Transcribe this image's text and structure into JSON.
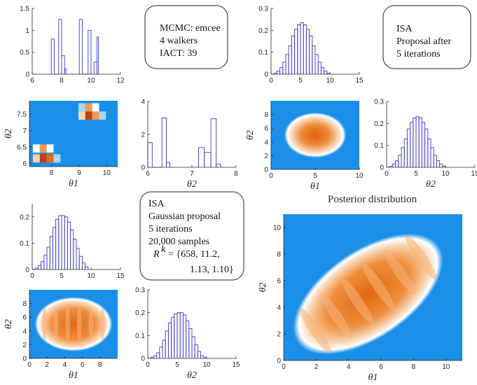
{
  "colors": {
    "background": "#1a8fe8",
    "accent": "#e05a08",
    "line": "#3b3bc8",
    "text": "#262626"
  },
  "text_boxes": [
    {
      "id": "tb1",
      "lines": [
        "MCMC: emcee",
        "4 walkers",
        "IACT: 39"
      ]
    },
    {
      "id": "tb2",
      "lines": [
        "ISA",
        "Proposal after",
        "5 iterations"
      ]
    },
    {
      "id": "tb3",
      "lines": [
        "ISA",
        "Gaussian proposal",
        "5 iterations",
        "20,000 samples"
      ],
      "math": [
        "R",
        "k",
        "= {658, 11.2,",
        "1.13, 1.10}"
      ]
    }
  ],
  "section_title": "Posterior distribution",
  "chart_data": [
    {
      "id": "p1",
      "type": "histogram",
      "x_range": [
        6,
        12
      ],
      "y_range": [
        0,
        1.5
      ],
      "x_ticks": [
        "6",
        "8",
        "10",
        "12"
      ],
      "y_ticks": [
        "0",
        "0.5",
        "1",
        "1.5"
      ],
      "bins": [
        [
          7.3,
          7.5,
          0.8
        ],
        [
          7.5,
          7.8,
          0
        ],
        [
          7.8,
          8.0,
          1.25
        ],
        [
          8.0,
          8.2,
          0.42
        ],
        [
          8.2,
          8.3,
          0.12
        ],
        [
          9.2,
          9.4,
          1.25
        ],
        [
          9.4,
          9.8,
          0
        ],
        [
          9.8,
          10.0,
          1.0
        ],
        [
          10.2,
          10.4,
          0.28
        ],
        [
          10.4,
          10.5,
          0.85
        ]
      ]
    },
    {
      "id": "p2",
      "type": "histogram",
      "x_range": [
        0,
        15
      ],
      "y_range": [
        0,
        0.3
      ],
      "x_ticks": [
        "0",
        "5",
        "10",
        "15"
      ],
      "y_ticks": [
        "0",
        "0.1",
        "0.2",
        "0.3"
      ],
      "bins": [
        [
          0.5,
          1,
          0.005
        ],
        [
          1,
          1.5,
          0.015
        ],
        [
          1.5,
          2,
          0.03
        ],
        [
          2,
          2.5,
          0.055
        ],
        [
          2.5,
          3,
          0.09
        ],
        [
          3,
          3.5,
          0.13
        ],
        [
          3.5,
          4,
          0.175
        ],
        [
          4,
          4.5,
          0.205
        ],
        [
          4.5,
          5,
          0.225
        ],
        [
          5,
          5.5,
          0.235
        ],
        [
          5.5,
          6,
          0.225
        ],
        [
          6,
          6.5,
          0.205
        ],
        [
          6.5,
          7,
          0.175
        ],
        [
          7,
          7.5,
          0.13
        ],
        [
          7.5,
          8,
          0.09
        ],
        [
          8,
          8.5,
          0.055
        ],
        [
          8.5,
          9,
          0.03
        ],
        [
          9,
          9.5,
          0.015
        ],
        [
          9.5,
          10,
          0.005
        ]
      ]
    },
    {
      "id": "p3",
      "type": "heatmap",
      "xlabel": "θ1",
      "ylabel": "θ2",
      "x_range": [
        7.2,
        10.4
      ],
      "y_range": [
        5.9,
        7.9
      ],
      "x_ticks": [
        "8",
        "9",
        "10"
      ],
      "y_ticks": [
        "6",
        "6.5",
        "7",
        "7.5"
      ],
      "cells": [
        [
          7.7,
          6.15,
          1
        ],
        [
          7.95,
          6.15,
          0.85
        ],
        [
          7.45,
          6.15,
          0.4
        ],
        [
          7.7,
          6.45,
          0.6
        ],
        [
          7.45,
          6.45,
          0.25
        ],
        [
          7.95,
          6.45,
          0.2
        ],
        [
          8.2,
          6.15,
          0.15
        ],
        [
          9.35,
          7.45,
          1
        ],
        [
          9.6,
          7.45,
          0.7
        ],
        [
          9.1,
          7.45,
          0.4
        ],
        [
          9.35,
          7.7,
          0.55
        ],
        [
          9.6,
          7.7,
          0.2
        ],
        [
          9.1,
          7.7,
          0.15
        ],
        [
          9.85,
          7.45,
          0.15
        ]
      ]
    },
    {
      "id": "p4",
      "type": "histogram",
      "xlabel": "θ2",
      "x_range": [
        6,
        8
      ],
      "y_range": [
        0,
        4
      ],
      "x_ticks": [
        "6",
        "7",
        "8"
      ],
      "y_ticks": [
        "0",
        "2",
        "4"
      ],
      "bins": [
        [
          6.0,
          6.1,
          1.5
        ],
        [
          6.1,
          6.32,
          0
        ],
        [
          6.32,
          6.42,
          3.0
        ],
        [
          6.42,
          6.5,
          0.3
        ],
        [
          7.15,
          7.28,
          1.2
        ],
        [
          7.28,
          7.43,
          0.9
        ],
        [
          7.43,
          7.55,
          2.95
        ],
        [
          7.55,
          7.65,
          0.2
        ]
      ]
    },
    {
      "id": "p5",
      "type": "heatmap",
      "xlabel": "θ1",
      "ylabel": "θ2",
      "x_range": [
        0,
        10
      ],
      "y_range": [
        0,
        10
      ],
      "x_ticks": [
        "0",
        "5",
        "10"
      ],
      "y_ticks": [
        "0",
        "2",
        "4",
        "6",
        "8"
      ],
      "blob": {
        "cx": 5,
        "cy": 5,
        "sx": 1.6,
        "sy": 1.5
      }
    },
    {
      "id": "p6",
      "type": "histogram",
      "xlabel": "θ2",
      "x_range": [
        0,
        15
      ],
      "y_range": [
        0,
        0.3
      ],
      "x_ticks": [
        "0",
        "5",
        "10",
        "15"
      ],
      "y_ticks": [
        "0",
        "0.1",
        "0.2",
        "0.3"
      ],
      "bins": [
        [
          0.5,
          1,
          0.005
        ],
        [
          1,
          1.5,
          0.015
        ],
        [
          1.5,
          2,
          0.03
        ],
        [
          2,
          2.5,
          0.055
        ],
        [
          2.5,
          3,
          0.09
        ],
        [
          3,
          3.5,
          0.13
        ],
        [
          3.5,
          4,
          0.175
        ],
        [
          4,
          4.5,
          0.205
        ],
        [
          4.5,
          5,
          0.225
        ],
        [
          5,
          5.5,
          0.232
        ],
        [
          5.5,
          6,
          0.225
        ],
        [
          6,
          6.5,
          0.205
        ],
        [
          6.5,
          7,
          0.175
        ],
        [
          7,
          7.5,
          0.13
        ],
        [
          7.5,
          8,
          0.09
        ],
        [
          8,
          8.5,
          0.055
        ],
        [
          8.5,
          9,
          0.03
        ],
        [
          9,
          9.5,
          0.015
        ],
        [
          9.5,
          10,
          0.005
        ]
      ]
    },
    {
      "id": "p7",
      "type": "histogram",
      "x_range": [
        0,
        15
      ],
      "y_range": [
        0,
        0.25
      ],
      "x_ticks": [
        "0",
        "5",
        "10",
        "15"
      ],
      "y_ticks": [
        "0",
        "0.1",
        "0.2"
      ],
      "bins": [
        [
          0.5,
          1,
          0.005
        ],
        [
          1,
          1.5,
          0.015
        ],
        [
          1.5,
          2,
          0.03
        ],
        [
          2,
          2.5,
          0.055
        ],
        [
          2.5,
          3,
          0.085
        ],
        [
          3,
          3.5,
          0.125
        ],
        [
          3.5,
          4,
          0.16
        ],
        [
          4,
          4.5,
          0.19
        ],
        [
          4.5,
          5,
          0.205
        ],
        [
          5,
          5.5,
          0.205
        ],
        [
          5.5,
          6,
          0.2
        ],
        [
          6,
          6.5,
          0.18
        ],
        [
          6.5,
          7,
          0.15
        ],
        [
          7,
          7.5,
          0.115
        ],
        [
          7.5,
          8,
          0.08
        ],
        [
          8,
          8.5,
          0.05
        ],
        [
          8.5,
          9,
          0.025
        ],
        [
          9,
          9.5,
          0.01
        ]
      ]
    },
    {
      "id": "p8",
      "type": "heatmap",
      "xlabel": "θ1",
      "ylabel": "θ2",
      "x_range": [
        0,
        10
      ],
      "y_range": [
        0,
        10
      ],
      "x_ticks": [
        "0",
        "2",
        "4",
        "6",
        "8"
      ],
      "y_ticks": [
        "0",
        "2",
        "4",
        "6",
        "8"
      ],
      "blob": {
        "cx": 5,
        "cy": 5,
        "sx": 2.0,
        "sy": 1.8,
        "stripes": true
      }
    },
    {
      "id": "p9",
      "type": "histogram",
      "xlabel": "θ2",
      "x_range": [
        0,
        15
      ],
      "y_range": [
        0,
        0.3
      ],
      "x_ticks": [
        "0",
        "5",
        "10",
        "15"
      ],
      "y_ticks": [
        "0",
        "0.1",
        "0.2",
        "0.3"
      ],
      "bins": [
        [
          0.5,
          1,
          0.005
        ],
        [
          1,
          1.5,
          0.012
        ],
        [
          1.5,
          2,
          0.025
        ],
        [
          2,
          2.5,
          0.05
        ],
        [
          2.5,
          3,
          0.08
        ],
        [
          3,
          3.5,
          0.12
        ],
        [
          3.5,
          4,
          0.155
        ],
        [
          4,
          4.5,
          0.18
        ],
        [
          4.5,
          5,
          0.195
        ],
        [
          5,
          5.5,
          0.2
        ],
        [
          5.5,
          6,
          0.2
        ],
        [
          6,
          6.5,
          0.19
        ],
        [
          6.5,
          7,
          0.165
        ],
        [
          7,
          7.5,
          0.13
        ],
        [
          7.5,
          8,
          0.095
        ],
        [
          8,
          8.5,
          0.06
        ],
        [
          8.5,
          9,
          0.03
        ],
        [
          9,
          9.5,
          0.012
        ],
        [
          9.5,
          10,
          0.004
        ]
      ]
    },
    {
      "id": "p10",
      "type": "heatmap",
      "xlabel": "θ1",
      "ylabel": "θ2",
      "x_range": [
        0,
        11
      ],
      "y_range": [
        0,
        11
      ],
      "x_ticks": [
        "0",
        "2",
        "4",
        "6",
        "8",
        "10"
      ],
      "y_ticks": [
        "0",
        "2",
        "4",
        "6",
        "8",
        "10"
      ],
      "blob": {
        "cx": 5.2,
        "cy": 5.0,
        "sx": 2.4,
        "sy": 1.5,
        "rot": -0.6,
        "stripes": true
      }
    }
  ]
}
